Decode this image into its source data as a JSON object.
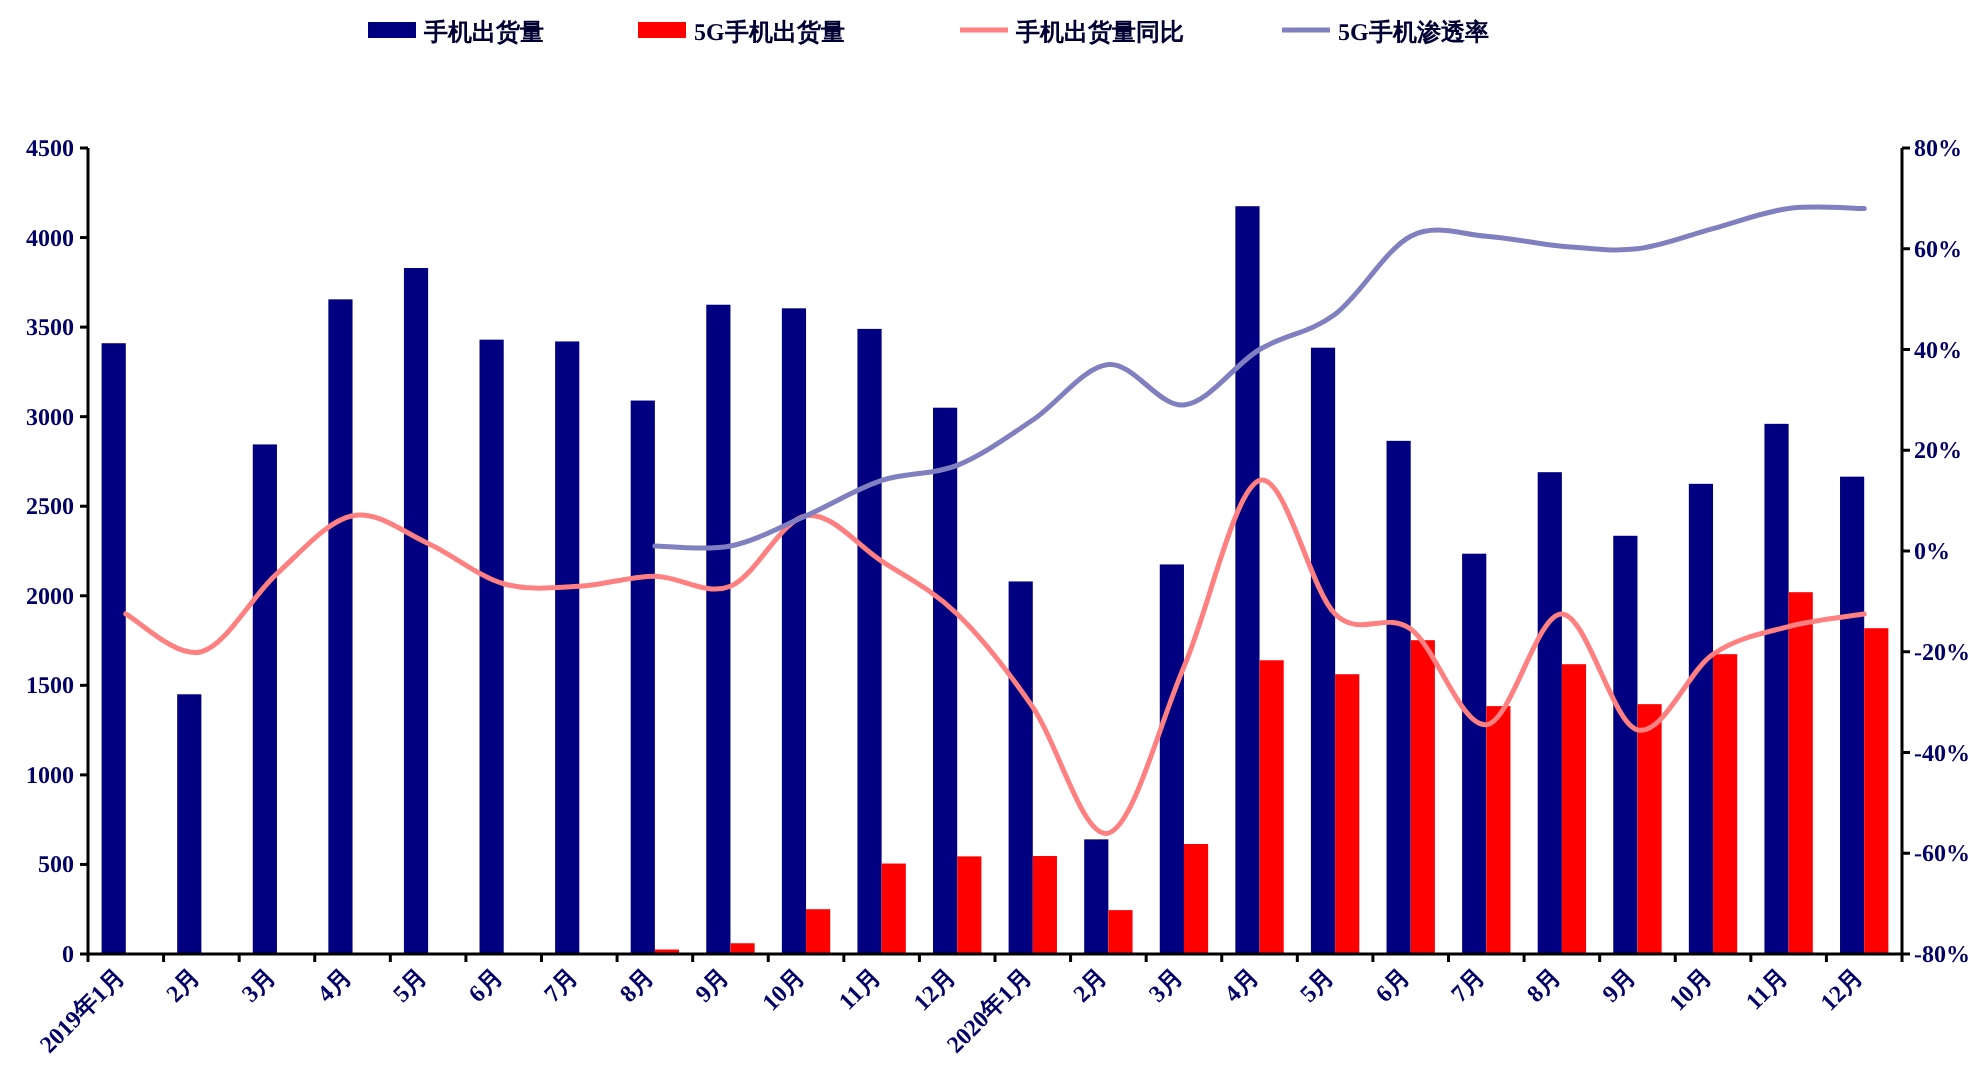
{
  "chart_data": {
    "type": "bar",
    "legend": "top",
    "grid": false,
    "categories": [
      "2019年1月",
      "2月",
      "3月",
      "4月",
      "5月",
      "6月",
      "7月",
      "8月",
      "9月",
      "10月",
      "11月",
      "12月",
      "2020年1月",
      "2月",
      "3月",
      "4月",
      "5月",
      "6月",
      "7月",
      "8月",
      "9月",
      "10月",
      "11月",
      "12月"
    ],
    "series": [
      {
        "name": "手机出货量",
        "color": "#000080",
        "values": [
          3410,
          1450,
          2845,
          3655,
          3830,
          3430,
          3420,
          3090,
          3625,
          3605,
          3490,
          3050,
          2080,
          640,
          2175,
          4175,
          3385,
          2865,
          2235,
          2690,
          2335,
          2625,
          2960,
          2665
        ]
      },
      {
        "name": "5G手机出货量",
        "color": "#ff0000",
        "values": [
          null,
          null,
          null,
          null,
          null,
          null,
          null,
          25,
          60,
          250,
          505,
          545,
          547,
          245,
          614,
          1640,
          1562,
          1752,
          1384,
          1618,
          1395,
          1674,
          2020,
          1819
        ]
      },
      {
        "name": "手机出货量同比",
        "type": "line",
        "axis": "y2",
        "color": "#ff8080",
        "values": [
          -12.5,
          -20,
          -4.5,
          7,
          1.5,
          -6.5,
          -7,
          -5,
          -7,
          7,
          -2,
          -12.5,
          -31,
          -56,
          -23,
          14,
          -12.5,
          -15.5,
          -34.5,
          -12.5,
          -35.5,
          -20.5,
          -15,
          -12.5
        ]
      },
      {
        "name": "5G手机渗透率",
        "type": "line",
        "axis": "y2",
        "color": "#8080c0",
        "values": [
          null,
          null,
          null,
          null,
          null,
          null,
          null,
          1,
          1,
          7,
          14,
          17,
          26,
          37,
          29,
          40,
          47,
          62.5,
          62.5,
          60.5,
          60,
          64,
          68,
          68
        ]
      }
    ],
    "ylim": [
      0,
      4500
    ],
    "yticks": [
      0,
      500,
      1000,
      1500,
      2000,
      2500,
      3000,
      3500,
      4000,
      4500
    ],
    "y2lim": [
      -80,
      80
    ],
    "y2ticks": [
      {
        "value": -80,
        "label": "-80%"
      },
      {
        "value": -60,
        "label": "-60%"
      },
      {
        "value": -40,
        "label": "-40%"
      },
      {
        "value": -20,
        "label": "-20%"
      },
      {
        "value": 0,
        "label": "0%"
      },
      {
        "value": 20,
        "label": "20%"
      },
      {
        "value": 40,
        "label": "40%"
      },
      {
        "value": 60,
        "label": "60%"
      },
      {
        "value": 80,
        "label": "80%"
      }
    ]
  }
}
